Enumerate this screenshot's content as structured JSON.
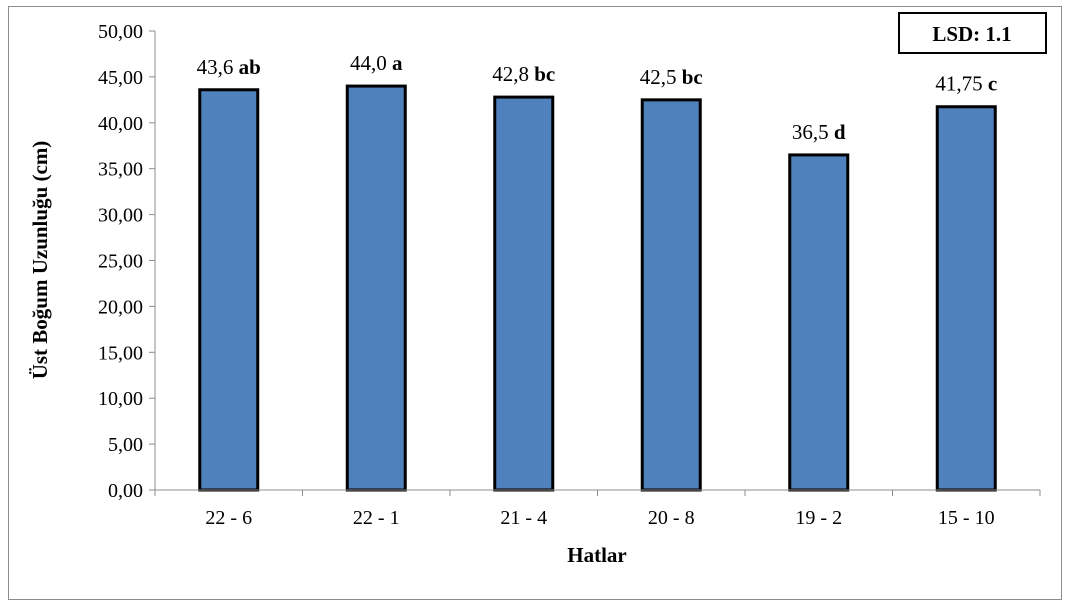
{
  "chart_data": {
    "type": "bar",
    "categories": [
      "22 - 6",
      "22 - 1",
      "21 - 4",
      "20 - 8",
      "19 - 2",
      "15 - 10"
    ],
    "values": [
      43.6,
      44.0,
      42.8,
      42.5,
      36.5,
      41.75
    ],
    "value_labels": [
      "43,6",
      "44,0",
      "42,8",
      "42,5",
      "36,5",
      "41,75"
    ],
    "group_letters": [
      "ab",
      "a",
      "bc",
      "bc",
      "d",
      "c"
    ],
    "xlabel": "Hatlar",
    "ylabel": "Üst Boğum Uzunluğu (cm)",
    "ylim": [
      0,
      50
    ],
    "y_ticks": [
      "0,00",
      "5,00",
      "10,00",
      "15,00",
      "20,00",
      "25,00",
      "30,00",
      "35,00",
      "40,00",
      "45,00",
      "50,00"
    ],
    "annotation": "LSD: 1.1",
    "bar_color": "#4f81bd",
    "grid": false
  }
}
